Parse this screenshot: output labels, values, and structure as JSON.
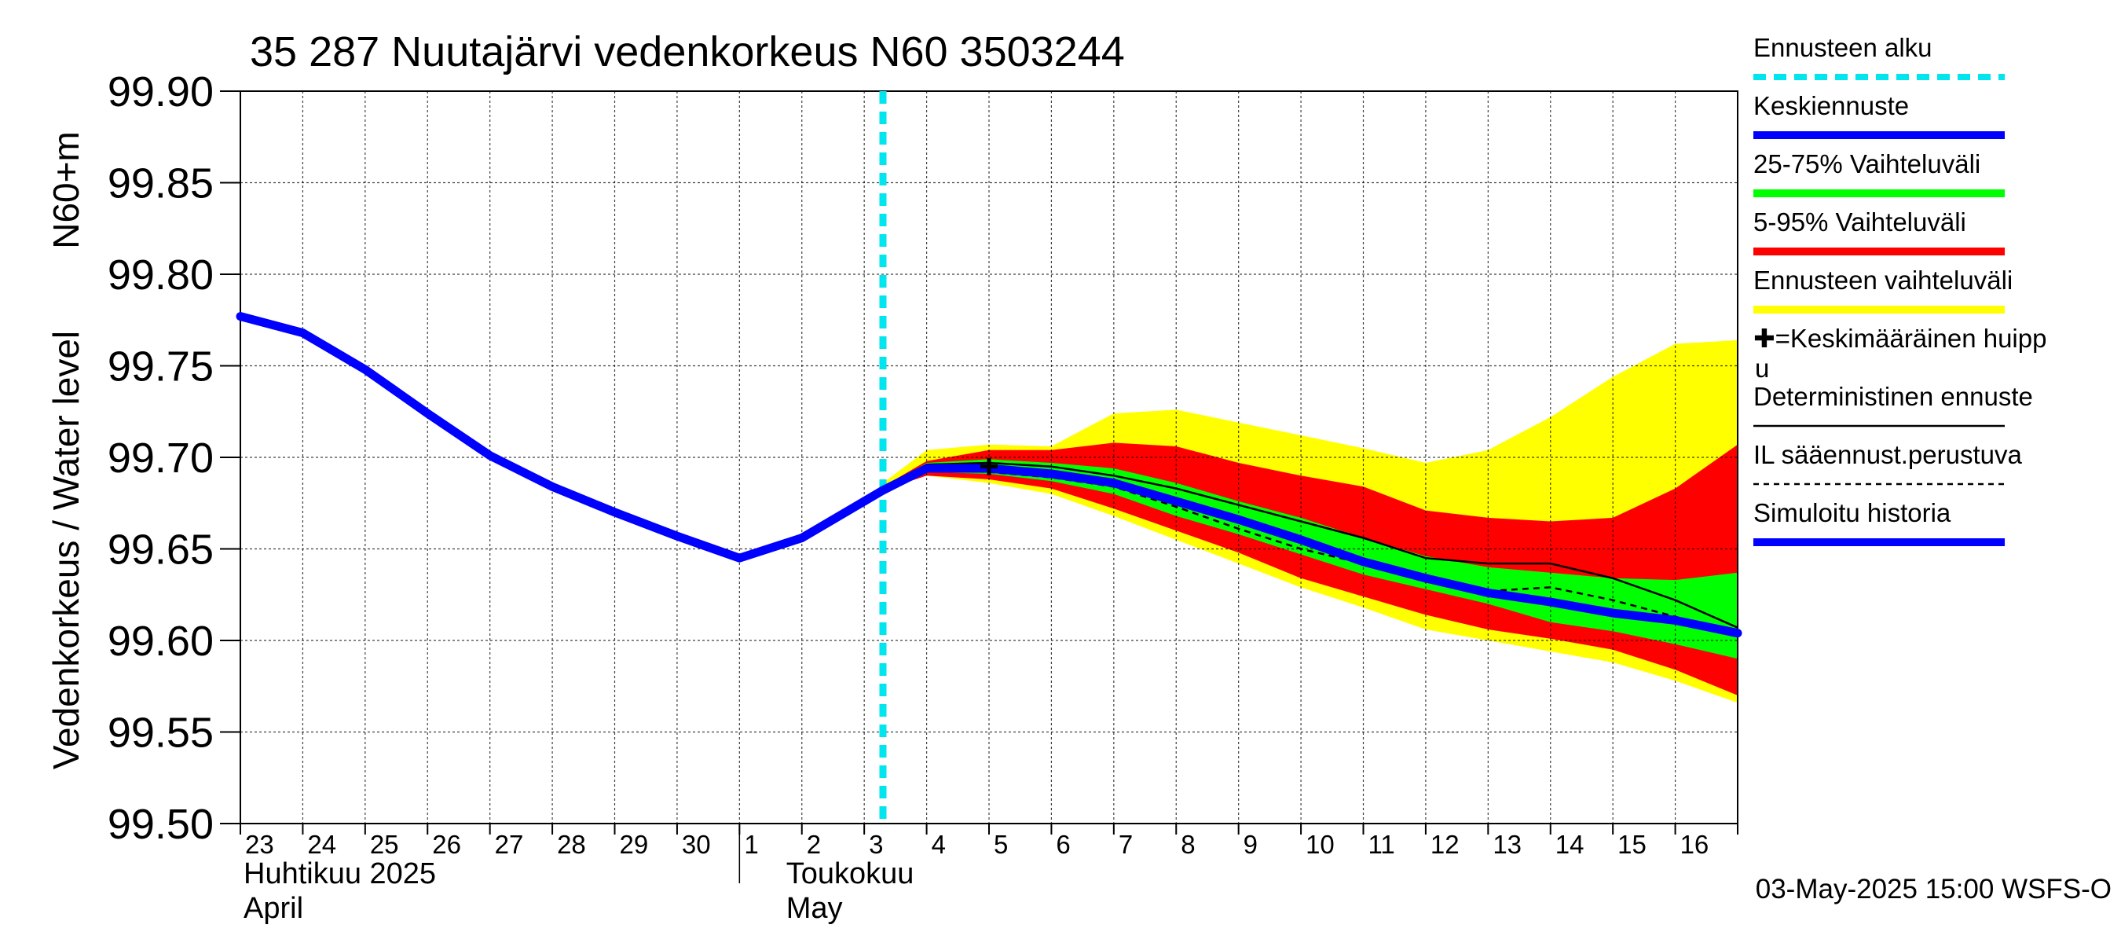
{
  "chart_data": {
    "type": "line",
    "title": "35 287 Nuutajärvi vedenkorkeus N60 3503244",
    "ylabel_left": "Vedenkorkeus / Water level",
    "ylabel_right": "N60+m",
    "ylim": [
      99.5,
      99.9
    ],
    "yticks": [
      "99.50",
      "99.55",
      "99.60",
      "99.65",
      "99.70",
      "99.75",
      "99.80",
      "99.85",
      "99.90"
    ],
    "x_start_date": "2025-04-23",
    "x_days": 24,
    "x_tick_labels": [
      "23",
      "24",
      "25",
      "26",
      "27",
      "28",
      "29",
      "30",
      "1",
      "2",
      "3",
      "4",
      "5",
      "6",
      "7",
      "8",
      "9",
      "10",
      "11",
      "12",
      "13",
      "14",
      "15",
      "16"
    ],
    "month_labels": [
      {
        "line1": "Huhtikuu  2025",
        "line2": "April"
      },
      {
        "line1": "Toukokuu",
        "line2": "May"
      }
    ],
    "forecast_start": 10.3,
    "footer": "03-May-2025 15:00 WSFS-O",
    "grid": true,
    "legend_position": "right",
    "legend": [
      {
        "label": "Ennusteen alku",
        "kind": "dashed",
        "color": "#00e5ee"
      },
      {
        "label": "Keskiennuste",
        "kind": "thick",
        "color": "#0000ff"
      },
      {
        "label": "25-75% Vaihteluväli",
        "kind": "thick",
        "color": "#00ff00"
      },
      {
        "label": "5-95% Vaihteluväli",
        "kind": "thick",
        "color": "#ff0000"
      },
      {
        "label": "Ennusteen vaihteluväli",
        "kind": "thick",
        "color": "#ffff00"
      },
      {
        "label": "✚=Keskimääräinen huipp",
        "label2": "u",
        "kind": "none",
        "color": "#000000"
      },
      {
        "label": "Deterministinen ennuste",
        "kind": "thin",
        "color": "#000000"
      },
      {
        "label": "IL sääennust.perustuva",
        "kind": "dotted",
        "color": "#000000"
      },
      {
        "label": "Simuloitu historia",
        "kind": "thick",
        "color": "#0000ff"
      }
    ],
    "series": {
      "history": {
        "name": "Simuloitu historia",
        "color": "#0000ff",
        "x": [
          0,
          1,
          2,
          3,
          4,
          5,
          6,
          7,
          8,
          9,
          10.3
        ],
        "y": [
          99.777,
          99.768,
          99.748,
          99.724,
          99.701,
          99.684,
          99.67,
          99.657,
          99.645,
          99.656,
          99.682
        ]
      },
      "band_total": {
        "name": "Ennusteen vaihteluväli",
        "color": "#ffff00",
        "x": [
          10.3,
          11,
          12,
          13,
          14,
          15,
          16,
          17,
          18,
          19,
          20,
          21,
          22,
          23,
          24
        ],
        "upper": [
          99.686,
          99.704,
          99.707,
          99.706,
          99.724,
          99.726,
          99.719,
          99.712,
          99.705,
          99.697,
          99.704,
          99.722,
          99.744,
          99.762,
          99.764
        ],
        "lower": [
          99.682,
          99.69,
          99.686,
          99.68,
          99.668,
          99.655,
          99.642,
          99.629,
          99.618,
          99.606,
          99.6,
          99.594,
          99.588,
          99.578,
          99.566
        ]
      },
      "band_5_95": {
        "name": "5-95% Vaihteluväli",
        "color": "#ff0000",
        "x": [
          10.3,
          11,
          12,
          13,
          14,
          15,
          16,
          17,
          18,
          19,
          20,
          21,
          22,
          23,
          24
        ],
        "upper": [
          99.684,
          99.698,
          99.704,
          99.704,
          99.708,
          99.706,
          99.697,
          99.69,
          99.684,
          99.671,
          99.667,
          99.665,
          99.667,
          99.683,
          99.707
        ],
        "lower": [
          99.682,
          99.69,
          99.688,
          99.683,
          99.672,
          99.66,
          99.648,
          99.634,
          99.624,
          99.614,
          99.606,
          99.601,
          99.595,
          99.584,
          99.57
        ]
      },
      "band_25_75": {
        "name": "25-75% Vaihteluväli",
        "color": "#00ff00",
        "x": [
          10.3,
          11,
          12,
          13,
          14,
          15,
          16,
          17,
          18,
          19,
          20,
          21,
          22,
          23,
          24
        ],
        "upper": [
          99.683,
          99.697,
          99.699,
          99.697,
          99.694,
          99.686,
          99.676,
          99.667,
          99.656,
          99.646,
          99.64,
          99.637,
          99.634,
          99.633,
          99.637
        ],
        "lower": [
          99.682,
          99.692,
          99.691,
          99.687,
          99.68,
          99.668,
          99.658,
          99.647,
          99.636,
          99.628,
          99.62,
          99.61,
          99.605,
          99.598,
          99.59
        ]
      },
      "deterministic": {
        "name": "Deterministinen ennuste",
        "color": "#000000",
        "x": [
          10.3,
          11,
          12,
          13,
          14,
          15,
          16,
          17,
          18,
          19,
          20,
          21,
          22,
          23,
          24
        ],
        "y": [
          99.683,
          99.696,
          99.697,
          99.695,
          99.69,
          99.683,
          99.674,
          99.665,
          99.656,
          99.645,
          99.642,
          99.642,
          99.634,
          99.622,
          99.607
        ]
      },
      "il_weather": {
        "name": "IL sääennust.perustuva",
        "color": "#000000",
        "x": [
          10.3,
          11,
          12,
          13,
          14,
          15,
          16,
          17,
          18,
          19,
          20,
          21,
          22,
          23,
          24
        ],
        "y": [
          99.682,
          99.693,
          99.692,
          99.689,
          99.684,
          99.673,
          99.661,
          99.65,
          99.642,
          99.632,
          99.627,
          99.629,
          99.622,
          99.613,
          99.603
        ]
      },
      "mean_forecast": {
        "name": "Keskiennuste",
        "color": "#0000ff",
        "x": [
          10.3,
          11,
          12,
          13,
          14,
          15,
          16,
          17,
          18,
          19,
          20,
          21,
          22,
          23,
          24
        ],
        "y": [
          99.682,
          99.694,
          99.694,
          99.691,
          99.686,
          99.676,
          99.666,
          99.655,
          99.643,
          99.634,
          99.626,
          99.621,
          99.615,
          99.611,
          99.604
        ]
      },
      "mean_peak": {
        "name": "Keskimääräinen huippu",
        "x": 12,
        "y": 99.695
      }
    }
  }
}
